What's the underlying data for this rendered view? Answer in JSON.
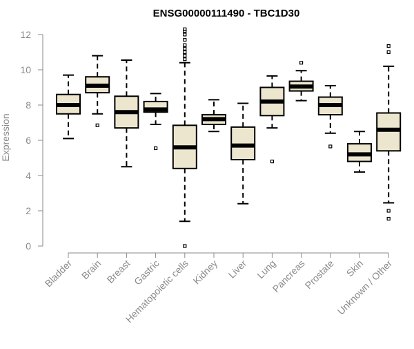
{
  "chart_data": {
    "type": "boxplot",
    "title": "ENSG00000111490 - TBC1D30",
    "xlabel": "",
    "ylabel": "Expression",
    "ylim": [
      0,
      12
    ],
    "yticks": [
      0,
      2,
      4,
      6,
      8,
      10,
      12
    ],
    "grid": false,
    "box_fill": "#ede6cf",
    "axis_color": "#8a8a8a",
    "categories": [
      "Bladder",
      "Brain",
      "Breast",
      "Gastric",
      "Hematopoietic cells",
      "Kidney",
      "Liver",
      "Lung",
      "Pancreas",
      "Prostate",
      "Skin",
      "Unknown / Other"
    ],
    "boxes": [
      {
        "category": "Bladder",
        "whisker_low": 6.1,
        "q1": 7.5,
        "median": 8.0,
        "q3": 8.6,
        "whisker_high": 9.7,
        "outliers": []
      },
      {
        "category": "Brain",
        "whisker_low": 7.5,
        "q1": 8.7,
        "median": 9.1,
        "q3": 9.6,
        "whisker_high": 10.8,
        "outliers": [
          6.85
        ]
      },
      {
        "category": "Breast",
        "whisker_low": 4.5,
        "q1": 6.7,
        "median": 7.6,
        "q3": 8.5,
        "whisker_high": 10.55,
        "outliers": []
      },
      {
        "category": "Gastric",
        "whisker_low": 6.9,
        "q1": 7.6,
        "median": 7.75,
        "q3": 8.2,
        "whisker_high": 8.65,
        "outliers": [
          5.55
        ]
      },
      {
        "category": "Hematopoietic cells",
        "whisker_low": 1.4,
        "q1": 4.4,
        "median": 5.6,
        "q3": 6.85,
        "whisker_high": 10.4,
        "outliers": [
          0.0,
          10.6,
          10.8,
          11.0,
          11.2,
          11.4,
          11.7,
          12.0,
          12.2,
          12.3
        ]
      },
      {
        "category": "Kidney",
        "whisker_low": 6.5,
        "q1": 6.9,
        "median": 7.2,
        "q3": 7.45,
        "whisker_high": 8.3,
        "outliers": []
      },
      {
        "category": "Liver",
        "whisker_low": 2.4,
        "q1": 4.9,
        "median": 5.7,
        "q3": 6.75,
        "whisker_high": 8.1,
        "outliers": []
      },
      {
        "category": "Lung",
        "whisker_low": 6.7,
        "q1": 7.4,
        "median": 8.2,
        "q3": 9.0,
        "whisker_high": 9.65,
        "outliers": [
          4.8
        ]
      },
      {
        "category": "Pancreas",
        "whisker_low": 8.25,
        "q1": 8.8,
        "median": 9.05,
        "q3": 9.35,
        "whisker_high": 9.95,
        "outliers": [
          10.4
        ]
      },
      {
        "category": "Prostate",
        "whisker_low": 6.4,
        "q1": 7.45,
        "median": 8.0,
        "q3": 8.45,
        "whisker_high": 9.1,
        "outliers": [
          5.65
        ]
      },
      {
        "category": "Skin",
        "whisker_low": 4.2,
        "q1": 4.8,
        "median": 5.2,
        "q3": 5.8,
        "whisker_high": 6.5,
        "outliers": []
      },
      {
        "category": "Unknown / Other",
        "whisker_low": 2.45,
        "q1": 5.4,
        "median": 6.6,
        "q3": 7.55,
        "whisker_high": 10.2,
        "outliers": [
          1.55,
          2.0,
          11.0,
          11.35
        ]
      }
    ]
  }
}
